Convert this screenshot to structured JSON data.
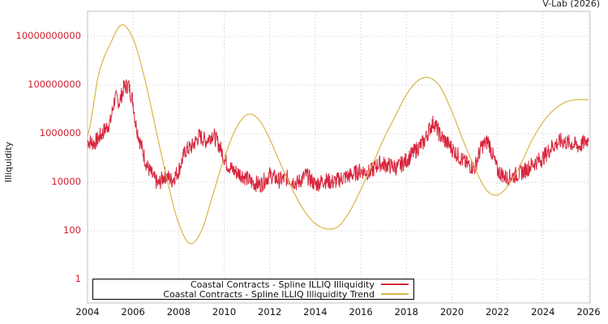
{
  "header": {
    "credit": "V-Lab (2026)"
  },
  "colors": {
    "series": "#d7263d",
    "trend": "#d9b54a",
    "tick_labels": "#d0202e",
    "grid": "#c8c8c8",
    "frame": "#cccccc"
  },
  "chart_data": {
    "type": "line",
    "title": "",
    "xlabel": "",
    "ylabel": "Illiquidity",
    "yscale": "log",
    "xlim": [
      2004,
      2026
    ],
    "ylim": [
      0.1,
      100000000000.0
    ],
    "x_ticks": [
      "2004",
      "2006",
      "2008",
      "2010",
      "2012",
      "2014",
      "2016",
      "2018",
      "2020",
      "2022",
      "2024",
      "2026"
    ],
    "y_ticks": [
      "10000000000",
      "100000000",
      "1000000",
      "10000",
      "100",
      "1"
    ],
    "grid": true,
    "legend_position": "bottom-left",
    "legend": [
      "Coastal Contracts - Spline ILLIQ Illiquidity",
      "Coastal Contracts - Spline ILLIQ Illiquidity Trend"
    ],
    "series": [
      {
        "name": "Coastal Contracts - Spline ILLIQ Illiquidity",
        "color": "#d7263d",
        "x": [
          2004.0,
          2004.3,
          2004.6,
          2005.0,
          2005.2,
          2005.4,
          2005.6,
          2005.8,
          2006.0,
          2006.1,
          2006.3,
          2006.6,
          2006.9,
          2007.1,
          2007.4,
          2007.7,
          2008.0,
          2008.3,
          2008.6,
          2008.9,
          2009.2,
          2009.5,
          2009.8,
          2010.1,
          2010.4,
          2010.8,
          2011.2,
          2011.6,
          2012.0,
          2012.4,
          2012.8,
          2013.2,
          2013.6,
          2014.0,
          2014.4,
          2014.8,
          2015.2,
          2015.6,
          2016.0,
          2016.4,
          2016.8,
          2017.2,
          2017.6,
          2018.0,
          2018.4,
          2018.8,
          2019.0,
          2019.2,
          2019.5,
          2019.8,
          2020.2,
          2020.6,
          2021.0,
          2021.3,
          2021.6,
          2022.0,
          2022.4,
          2022.8,
          2023.2,
          2023.6,
          2024.0,
          2024.4,
          2024.8,
          2025.2,
          2025.6,
          2026.0
        ],
        "y": [
          500000,
          400000,
          900000,
          3000000,
          30000000,
          20000000,
          80000000,
          100000000,
          20000000,
          3000000,
          500000,
          50000,
          15000,
          8000,
          20000,
          12000,
          30000,
          200000,
          300000,
          800000,
          500000,
          1000000,
          300000,
          60000,
          30000,
          20000,
          10000,
          8000,
          20000,
          12000,
          15000,
          9000,
          20000,
          8000,
          12000,
          10000,
          15000,
          20000,
          30000,
          25000,
          60000,
          50000,
          40000,
          80000,
          200000,
          500000,
          1500000,
          3000000,
          800000,
          400000,
          150000,
          60000,
          40000,
          300000,
          500000,
          30000,
          15000,
          20000,
          30000,
          60000,
          100000,
          300000,
          500000,
          400000,
          300000,
          600000
        ]
      },
      {
        "name": "Coastal Contracts - Spline ILLIQ Illiquidity Trend",
        "color": "#d9b54a",
        "x": [
          2004.0,
          2004.5,
          2005.0,
          2005.5,
          2006.0,
          2006.5,
          2007.0,
          2007.5,
          2008.0,
          2008.5,
          2009.0,
          2009.5,
          2010.0,
          2010.5,
          2011.0,
          2011.5,
          2012.0,
          2012.5,
          2013.0,
          2013.5,
          2014.0,
          2014.5,
          2015.0,
          2015.5,
          2016.0,
          2016.5,
          2017.0,
          2017.5,
          2018.0,
          2018.5,
          2019.0,
          2019.5,
          2020.0,
          2020.5,
          2021.0,
          2021.5,
          2022.0,
          2022.5,
          2023.0,
          2023.5,
          2024.0,
          2024.5,
          2025.0,
          2025.5,
          2026.0
        ],
        "y": [
          800000,
          300000000,
          5000000000,
          30000000000,
          8000000000,
          200000000,
          1500000,
          12000,
          200,
          30,
          100,
          3000,
          100000,
          1500000,
          6000000,
          4000000,
          600000,
          50000,
          5000,
          700,
          200,
          120,
          150,
          600,
          5000,
          50000,
          600000,
          5000000,
          40000000,
          150000000,
          200000000,
          80000000,
          8000000,
          500000,
          40000,
          5000,
          3000,
          8000,
          50000,
          500000,
          3000000,
          10000000,
          20000000,
          25000000,
          25000000
        ]
      }
    ]
  }
}
